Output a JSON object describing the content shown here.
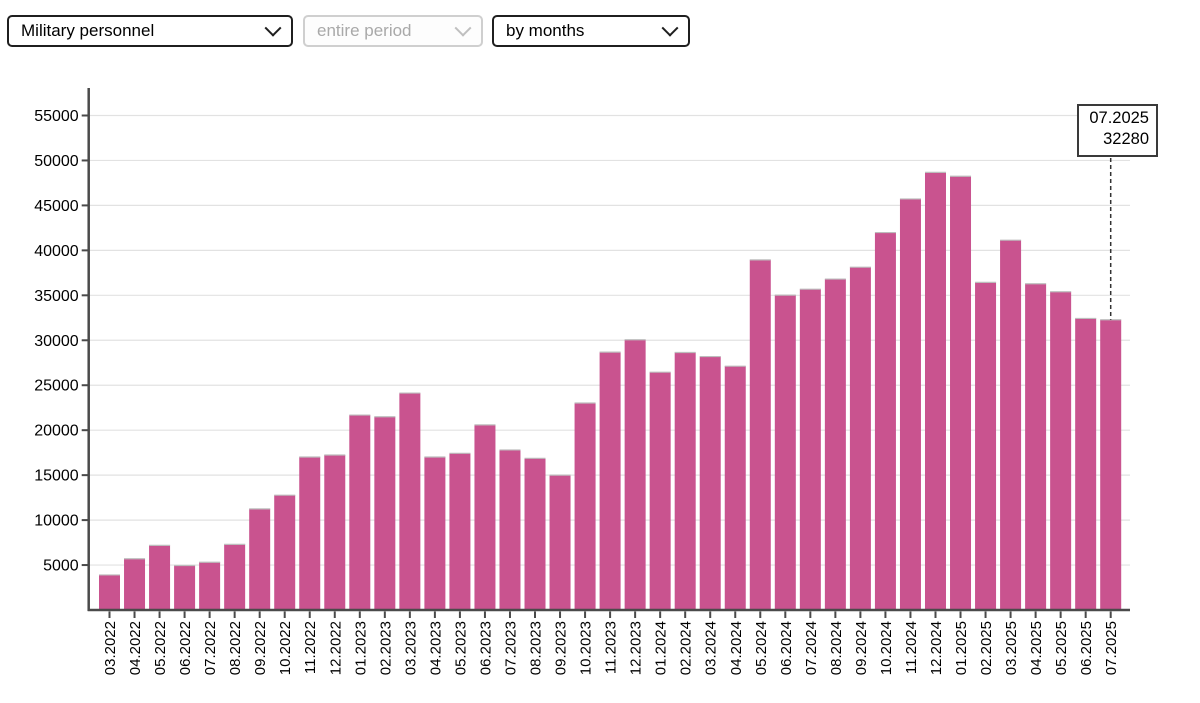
{
  "controls": {
    "dataset_select": {
      "value": "Military personnel",
      "disabled": false
    },
    "period_select": {
      "value": "entire period",
      "disabled": true
    },
    "granularity_select": {
      "value": "by months",
      "disabled": false
    }
  },
  "tooltip": {
    "date": "07.2025",
    "value": "32280"
  },
  "chart_data": {
    "type": "bar",
    "title": "",
    "xlabel": "",
    "ylabel": "",
    "categories": [
      "03.2022",
      "04.2022",
      "05.2022",
      "06.2022",
      "07.2022",
      "08.2022",
      "09.2022",
      "10.2022",
      "11.2022",
      "12.2022",
      "01.2023",
      "02.2023",
      "03.2023",
      "04.2023",
      "05.2023",
      "06.2023",
      "07.2023",
      "08.2023",
      "09.2023",
      "10.2023",
      "11.2023",
      "12.2023",
      "01.2024",
      "02.2024",
      "03.2024",
      "04.2024",
      "05.2024",
      "06.2024",
      "07.2024",
      "08.2024",
      "09.2024",
      "10.2024",
      "11.2024",
      "12.2024",
      "01.2025",
      "02.2025",
      "03.2025",
      "04.2025",
      "05.2025",
      "06.2025",
      "07.2025"
    ],
    "values": [
      3900,
      5700,
      7190,
      4950,
      5310,
      7300,
      11250,
      12770,
      17020,
      17240,
      21680,
      21490,
      24130,
      17020,
      17430,
      20590,
      17800,
      16870,
      15000,
      23020,
      28680,
      30060,
      26450,
      28640,
      28190,
      27120,
      38940,
      35020,
      35680,
      36810,
      38130,
      41980,
      45720,
      48670,
      48240,
      36440,
      41130,
      36290,
      35400,
      32430,
      32280
    ],
    "yticks": [
      5000,
      10000,
      15000,
      20000,
      25000,
      30000,
      35000,
      40000,
      45000,
      50000,
      55000
    ],
    "ylim": [
      0,
      57000
    ],
    "grid": true,
    "legend": "none",
    "bar_color": "#c9538f",
    "bar_top_edge_color": "#bdbdbd",
    "grid_color": "#e2e2e2",
    "axis_color": "#4a4a4a",
    "label_color": "#000000",
    "highlight": {
      "category": "07.2025",
      "value": 32280
    }
  }
}
